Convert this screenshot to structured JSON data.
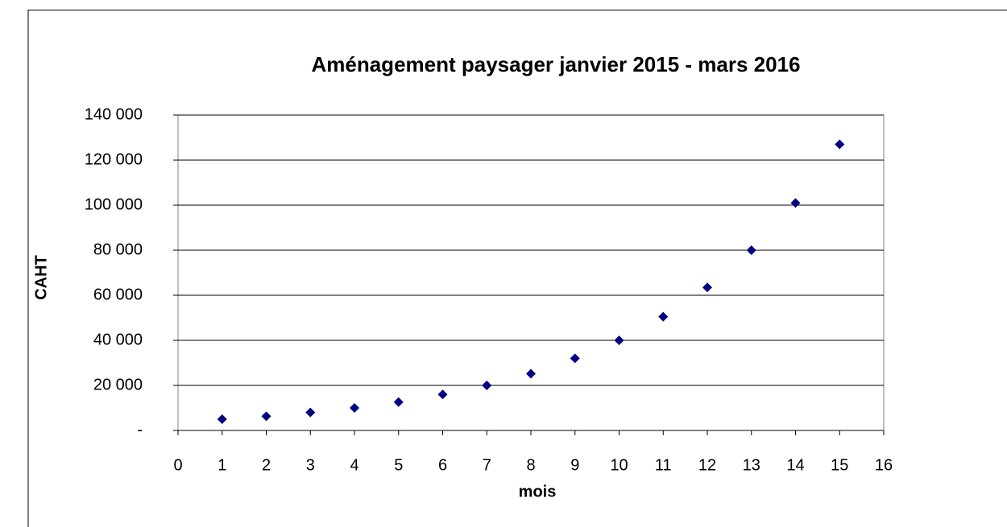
{
  "chart_data": {
    "type": "scatter",
    "title": "Aménagement paysager janvier 2015 - mars 2016",
    "x_label": "mois",
    "y_label": "CAHT",
    "series": [
      {
        "name": "CAHT",
        "color": "#000080",
        "x": [
          1,
          2,
          3,
          4,
          5,
          6,
          7,
          8,
          9,
          10,
          11,
          12,
          13,
          14,
          15
        ],
        "values": [
          5000,
          6300,
          8000,
          10000,
          12600,
          16000,
          20000,
          25200,
          32000,
          40000,
          50500,
          63500,
          80000,
          101000,
          127000
        ]
      }
    ],
    "xlim": [
      0,
      16
    ],
    "xticks": [
      0,
      1,
      2,
      3,
      4,
      5,
      6,
      7,
      8,
      9,
      10,
      11,
      12,
      13,
      14,
      15,
      16
    ],
    "ylim": [
      0,
      140000
    ],
    "yticks": [
      {
        "value": 0,
        "label": "-"
      },
      {
        "value": 20000,
        "label": "20 000"
      },
      {
        "value": 40000,
        "label": "40 000"
      },
      {
        "value": 60000,
        "label": "60 000"
      },
      {
        "value": 80000,
        "label": "80 000"
      },
      {
        "value": 100000,
        "label": "100 000"
      },
      {
        "value": 120000,
        "label": "120 000"
      },
      {
        "value": 140000,
        "label": "140 000"
      }
    ],
    "grid": true
  }
}
